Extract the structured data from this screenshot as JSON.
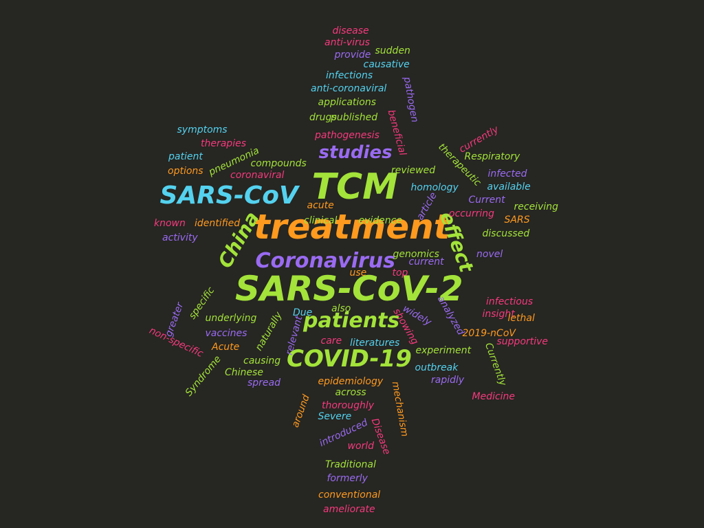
{
  "colors": {
    "background": "#262622",
    "green": "#a3e33a",
    "orange": "#ff9a1f",
    "blue": "#54d2ef",
    "purple": "#9a6bf2",
    "pink": "#f53a7d"
  },
  "words": [
    {
      "text": "SARS-CoV-2",
      "color": "green"
    },
    {
      "text": "treatment",
      "color": "orange"
    },
    {
      "text": "TCM",
      "color": "green"
    },
    {
      "text": "SARS-CoV",
      "color": "blue"
    },
    {
      "text": "COVID-19",
      "color": "green"
    },
    {
      "text": "Coronavirus",
      "color": "purple"
    },
    {
      "text": "patients",
      "color": "green"
    },
    {
      "text": "studies",
      "color": "purple"
    },
    {
      "text": "China",
      "color": "green"
    },
    {
      "text": "effect",
      "color": "green"
    },
    {
      "text": "disease",
      "color": "pink"
    },
    {
      "text": "anti-virus",
      "color": "pink"
    },
    {
      "text": "provide",
      "color": "purple"
    },
    {
      "text": "sudden",
      "color": "green"
    },
    {
      "text": "causative",
      "color": "blue"
    },
    {
      "text": "infections",
      "color": "blue"
    },
    {
      "text": "anti-coronaviral",
      "color": "blue"
    },
    {
      "text": "pathogen",
      "color": "purple"
    },
    {
      "text": "applications",
      "color": "green"
    },
    {
      "text": "drugs",
      "color": "green"
    },
    {
      "text": "published",
      "color": "green"
    },
    {
      "text": "beneficial",
      "color": "pink"
    },
    {
      "text": "symptoms",
      "color": "blue"
    },
    {
      "text": "therapies",
      "color": "pink"
    },
    {
      "text": "pathogenesis",
      "color": "pink"
    },
    {
      "text": "currently",
      "color": "pink"
    },
    {
      "text": "patient",
      "color": "blue"
    },
    {
      "text": "pneumonia",
      "color": "green"
    },
    {
      "text": "compounds",
      "color": "green"
    },
    {
      "text": "therapeutic",
      "color": "green"
    },
    {
      "text": "Respiratory",
      "color": "green"
    },
    {
      "text": "options",
      "color": "orange"
    },
    {
      "text": "coronaviral",
      "color": "pink"
    },
    {
      "text": "reviewed",
      "color": "green"
    },
    {
      "text": "infected",
      "color": "purple"
    },
    {
      "text": "homology",
      "color": "blue"
    },
    {
      "text": "available",
      "color": "blue"
    },
    {
      "text": "article",
      "color": "purple"
    },
    {
      "text": "acute",
      "color": "orange"
    },
    {
      "text": "Current",
      "color": "purple"
    },
    {
      "text": "receiving",
      "color": "green"
    },
    {
      "text": "known",
      "color": "pink"
    },
    {
      "text": "identified",
      "color": "orange"
    },
    {
      "text": "clinical",
      "color": "green"
    },
    {
      "text": "evidence",
      "color": "green"
    },
    {
      "text": "occurring",
      "color": "pink"
    },
    {
      "text": "SARS",
      "color": "orange"
    },
    {
      "text": "activity",
      "color": "purple"
    },
    {
      "text": "discussed",
      "color": "green"
    },
    {
      "text": "genomics",
      "color": "green"
    },
    {
      "text": "novel",
      "color": "purple"
    },
    {
      "text": "current",
      "color": "purple"
    },
    {
      "text": "use",
      "color": "orange"
    },
    {
      "text": "top",
      "color": "pink"
    },
    {
      "text": "specific",
      "color": "green"
    },
    {
      "text": "infectious",
      "color": "pink"
    },
    {
      "text": "greater",
      "color": "purple"
    },
    {
      "text": "analyzed",
      "color": "purple"
    },
    {
      "text": "underlying",
      "color": "green"
    },
    {
      "text": "also",
      "color": "green"
    },
    {
      "text": "Due",
      "color": "blue"
    },
    {
      "text": "widely",
      "color": "purple"
    },
    {
      "text": "insight",
      "color": "pink"
    },
    {
      "text": "lethal",
      "color": "orange"
    },
    {
      "text": "naturally",
      "color": "green"
    },
    {
      "text": "showing",
      "color": "pink"
    },
    {
      "text": "vaccines",
      "color": "purple"
    },
    {
      "text": "non-specific",
      "color": "pink"
    },
    {
      "text": "relevant",
      "color": "purple"
    },
    {
      "text": "2019-nCoV",
      "color": "orange"
    },
    {
      "text": "supportive",
      "color": "pink"
    },
    {
      "text": "Acute",
      "color": "orange"
    },
    {
      "text": "care",
      "color": "pink"
    },
    {
      "text": "literatures",
      "color": "blue"
    },
    {
      "text": "experiment",
      "color": "green"
    },
    {
      "text": "Currently",
      "color": "green"
    },
    {
      "text": "causing",
      "color": "green"
    },
    {
      "text": "Chinese",
      "color": "green"
    },
    {
      "text": "outbreak",
      "color": "blue"
    },
    {
      "text": "Syndrome",
      "color": "green"
    },
    {
      "text": "spread",
      "color": "purple"
    },
    {
      "text": "epidemiology",
      "color": "orange"
    },
    {
      "text": "rapidly",
      "color": "purple"
    },
    {
      "text": "across",
      "color": "green"
    },
    {
      "text": "mechanism",
      "color": "orange"
    },
    {
      "text": "Medicine",
      "color": "pink"
    },
    {
      "text": "around",
      "color": "orange"
    },
    {
      "text": "thoroughly",
      "color": "pink"
    },
    {
      "text": "Severe",
      "color": "blue"
    },
    {
      "text": "Disease",
      "color": "pink"
    },
    {
      "text": "introduced",
      "color": "purple"
    },
    {
      "text": "world",
      "color": "pink"
    },
    {
      "text": "Traditional",
      "color": "green"
    },
    {
      "text": "formerly",
      "color": "purple"
    },
    {
      "text": "conventional",
      "color": "orange"
    },
    {
      "text": "ameliorate",
      "color": "pink"
    }
  ]
}
